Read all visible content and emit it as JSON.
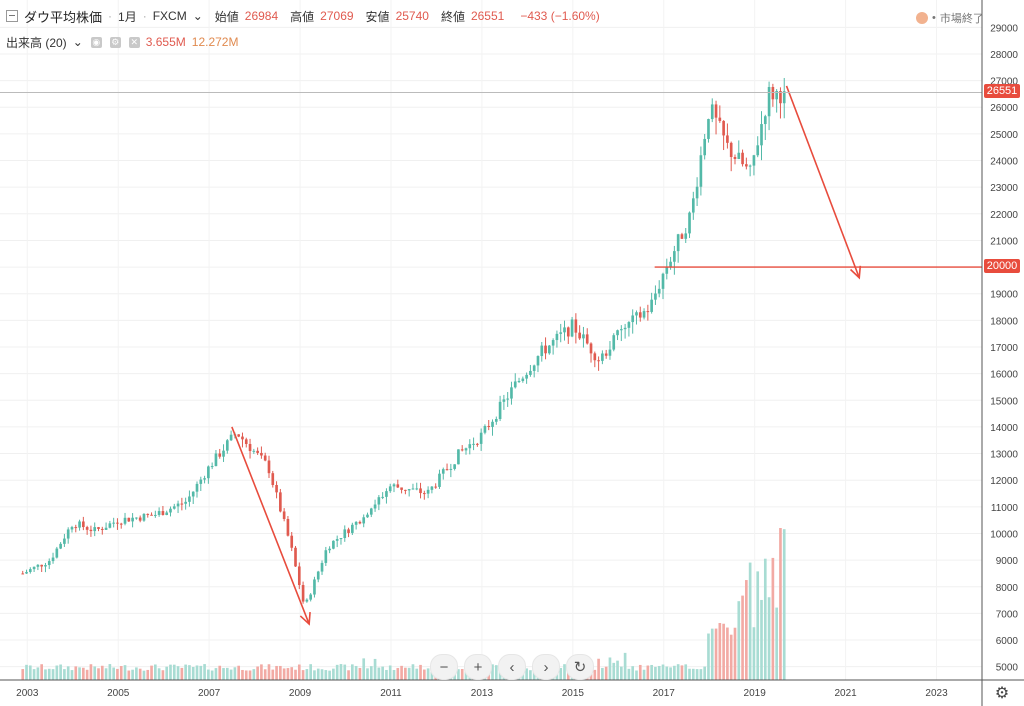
{
  "header": {
    "title": "ダウ平均株価",
    "interval": "1月",
    "source": "FXCM",
    "open_label": "始値",
    "open_value": "26984",
    "high_label": "高値",
    "high_value": "27069",
    "low_label": "安値",
    "low_value": "25740",
    "close_label": "終値",
    "close_value": "26551",
    "change": "−433 (−1.60%)"
  },
  "volume_indicator": {
    "label": "出来高 (20)",
    "value1": "3.655M",
    "value2": "12.272M"
  },
  "market_status": "市場終了",
  "price_tags": {
    "current": "26551",
    "line": "20000"
  },
  "nav": {
    "zoom_out": "−",
    "zoom_in": "+",
    "back": "‹",
    "forward": "›",
    "reset": "↻"
  },
  "settings_icon": "gear-icon",
  "colors": {
    "up": "#53b9a8",
    "down": "#e05a4f",
    "arrow": "#e84c3d"
  },
  "chart_data": {
    "type": "candlestick",
    "y_ticks": [
      5000,
      6000,
      7000,
      8000,
      9000,
      10000,
      11000,
      12000,
      13000,
      14000,
      15000,
      16000,
      17000,
      18000,
      19000,
      20000,
      21000,
      22000,
      23000,
      24000,
      25000,
      26000,
      27000,
      28000,
      29000
    ],
    "x_ticks": [
      "2003",
      "2005",
      "2007",
      "2009",
      "2011",
      "2013",
      "2015",
      "2017",
      "2019",
      "2021",
      "2023"
    ],
    "ylim": [
      4500,
      29500
    ],
    "close_points": [
      {
        "x": 2002.9,
        "y": 8500
      },
      {
        "x": 2003.5,
        "y": 9000
      },
      {
        "x": 2004.0,
        "y": 10400
      },
      {
        "x": 2004.5,
        "y": 10100
      },
      {
        "x": 2005.0,
        "y": 10500
      },
      {
        "x": 2005.8,
        "y": 10700
      },
      {
        "x": 2006.5,
        "y": 11200
      },
      {
        "x": 2007.0,
        "y": 12500
      },
      {
        "x": 2007.6,
        "y": 13800
      },
      {
        "x": 2008.3,
        "y": 12500
      },
      {
        "x": 2008.8,
        "y": 9500
      },
      {
        "x": 2009.1,
        "y": 7200
      },
      {
        "x": 2009.6,
        "y": 9500
      },
      {
        "x": 2010.3,
        "y": 10500
      },
      {
        "x": 2011.0,
        "y": 11800
      },
      {
        "x": 2011.8,
        "y": 11500
      },
      {
        "x": 2012.5,
        "y": 13000
      },
      {
        "x": 2013.0,
        "y": 13700
      },
      {
        "x": 2013.7,
        "y": 15500
      },
      {
        "x": 2014.3,
        "y": 16800
      },
      {
        "x": 2015.0,
        "y": 17800
      },
      {
        "x": 2015.6,
        "y": 16500
      },
      {
        "x": 2016.0,
        "y": 17500
      },
      {
        "x": 2016.7,
        "y": 18500
      },
      {
        "x": 2017.0,
        "y": 19800
      },
      {
        "x": 2017.6,
        "y": 22000
      },
      {
        "x": 2018.0,
        "y": 26000
      },
      {
        "x": 2018.4,
        "y": 24500
      },
      {
        "x": 2018.9,
        "y": 23500
      },
      {
        "x": 2019.3,
        "y": 26500
      },
      {
        "x": 2019.7,
        "y": 26551
      }
    ],
    "volume_points": [
      {
        "x": 2018.0,
        "y": 6000
      },
      {
        "x": 2018.7,
        "y": 9000
      },
      {
        "x": 2019.2,
        "y": 8500
      },
      {
        "x": 2019.6,
        "y": 10800
      }
    ],
    "annotations": [
      {
        "type": "arrow",
        "from": {
          "x": 2007.5,
          "y": 14000
        },
        "to": {
          "x": 2009.2,
          "y": 6600
        }
      },
      {
        "type": "arrow",
        "from": {
          "x": 2019.7,
          "y": 26800
        },
        "to": {
          "x": 2021.3,
          "y": 19600
        }
      },
      {
        "type": "hline",
        "y": 20000,
        "from_x": 2016.8
      },
      {
        "type": "hline",
        "y": 26551
      }
    ]
  }
}
